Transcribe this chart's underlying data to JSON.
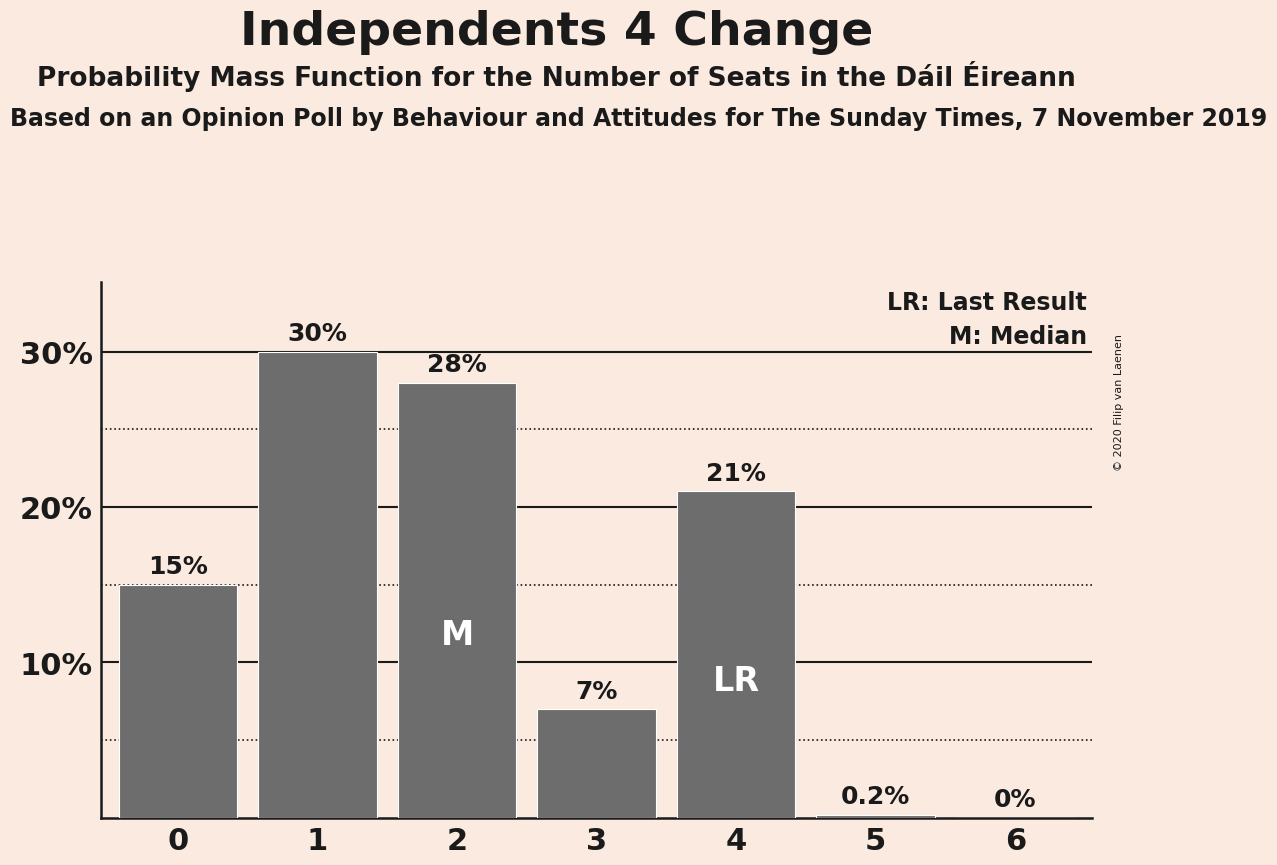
{
  "title": "Independents 4 Change",
  "subtitle": "Probability Mass Function for the Number of Seats in the Dáil Éireann",
  "source_line": "Based on an Opinion Poll by Behaviour and Attitudes for The Sunday Times, 7 November 2019",
  "copyright": "© 2020 Filip van Laenen",
  "categories": [
    0,
    1,
    2,
    3,
    4,
    5,
    6
  ],
  "values": [
    0.15,
    0.3,
    0.28,
    0.07,
    0.21,
    0.002,
    0.0
  ],
  "bar_color": "#6d6d6d",
  "background_color": "#faeae0",
  "label_color_above": "#1a1a1a",
  "label_color_inside": "#ffffff",
  "value_labels": [
    "15%",
    "30%",
    "28%",
    "7%",
    "21%",
    "0.2%",
    "0%"
  ],
  "inside_labels": [
    "",
    "",
    "M",
    "",
    "LR",
    "",
    ""
  ],
  "yticks": [
    0.0,
    0.1,
    0.2,
    0.3
  ],
  "ytick_labels": [
    "",
    "10%",
    "20%",
    "30%"
  ],
  "ylim": [
    0,
    0.345
  ],
  "legend_text_lr": "LR: Last Result",
  "legend_text_m": "M: Median",
  "dotted_lines": [
    0.05,
    0.15,
    0.25
  ],
  "solid_lines": [
    0.1,
    0.2,
    0.3
  ],
  "title_fontsize": 34,
  "subtitle_fontsize": 19,
  "source_fontsize": 17,
  "bar_width": 0.85,
  "value_label_fontsize": 18,
  "inside_label_fontsize": 24,
  "tick_fontsize": 22,
  "legend_fontsize": 17
}
